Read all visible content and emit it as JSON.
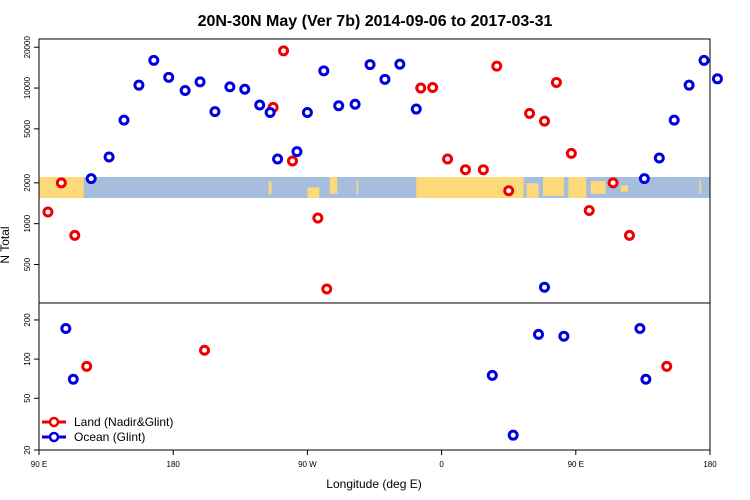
{
  "chart_data": {
    "type": "scatter",
    "title": "20N-30N May (Ver 7b)   2014-09-06 to 2017-03-31",
    "xlabel": "Longitude (deg E)",
    "ylabel": "N Total",
    "x_ticks": [
      {
        "lon": 90,
        "label": "90 E"
      },
      {
        "lon": 180,
        "label": "180"
      },
      {
        "lon": 270,
        "label": "90 W"
      },
      {
        "lon": 360,
        "label": "0"
      },
      {
        "lon": 450,
        "label": "90 E"
      },
      {
        "lon": 540,
        "label": "180"
      }
    ],
    "x_range": [
      90,
      540
    ],
    "top_panel": {
      "y_scale": "log",
      "ylim": [
        260,
        23000
      ],
      "y_ticks": [
        {
          "value": 500,
          "label": "500"
        },
        {
          "value": 1000,
          "label": "1000"
        },
        {
          "value": 2000,
          "label": "2000"
        },
        {
          "value": 5000,
          "label": "5000"
        },
        {
          "value": 10000,
          "label": "10000"
        },
        {
          "value": 20000,
          "label": "20000"
        }
      ],
      "map_band": {
        "ocean_color": "#a5bede",
        "land_color": "#fcd97a"
      },
      "series": [
        {
          "name": "Land (Nadir&Glint)",
          "color": "#ee0000",
          "points": [
            [
              96,
              1220
            ],
            [
              105,
              2000
            ],
            [
              114,
              820
            ],
            [
              247,
              7200
            ],
            [
              254,
              18800
            ],
            [
              260,
              2900
            ],
            [
              277,
              1100
            ],
            [
              283,
              330
            ],
            [
              346,
              10000
            ],
            [
              354,
              10100
            ],
            [
              364,
              3000
            ],
            [
              376,
              2500
            ],
            [
              388,
              2500
            ],
            [
              397,
              14500
            ],
            [
              405,
              1750
            ],
            [
              419,
              6500
            ],
            [
              429,
              5700
            ],
            [
              437,
              11000
            ],
            [
              447,
              3300
            ],
            [
              459,
              1250
            ],
            [
              475,
              2000
            ],
            [
              486,
              820
            ]
          ]
        },
        {
          "name": "Ocean (Glint)",
          "color": "#0000dd",
          "points": [
            [
              125,
              2150
            ],
            [
              137,
              3100
            ],
            [
              147,
              5800
            ],
            [
              157,
              10500
            ],
            [
              167,
              16000
            ],
            [
              177,
              12000
            ],
            [
              188,
              9600
            ],
            [
              198,
              11100
            ],
            [
              208,
              6700
            ],
            [
              218,
              10200
            ],
            [
              228,
              9800
            ],
            [
              238,
              7500
            ],
            [
              245,
              6600
            ],
            [
              250,
              3000
            ],
            [
              263,
              3400
            ],
            [
              270,
              6600
            ],
            [
              281,
              13400
            ],
            [
              291,
              7400
            ],
            [
              302,
              7600
            ],
            [
              312,
              14900
            ],
            [
              322,
              11600
            ],
            [
              332,
              15000
            ],
            [
              343,
              7000
            ],
            [
              429,
              340
            ],
            [
              496,
              2150
            ],
            [
              506,
              3050
            ],
            [
              516,
              5800
            ],
            [
              526,
              10500
            ],
            [
              536,
              16000
            ],
            [
              545,
              11700
            ]
          ]
        }
      ]
    },
    "bottom_panel": {
      "y_scale": "log",
      "ylim": [
        20,
        270
      ],
      "y_ticks": [
        {
          "value": 20,
          "label": "20"
        },
        {
          "value": 50,
          "label": "50"
        },
        {
          "value": 100,
          "label": "100"
        },
        {
          "value": 200,
          "label": "200"
        }
      ],
      "series": [
        {
          "name": "Land (Nadir&Glint)",
          "color": "#ee0000",
          "points": [
            [
              122,
              88
            ],
            [
              201,
              117
            ],
            [
              511,
              88
            ]
          ]
        },
        {
          "name": "Ocean (Glint)",
          "color": "#0000dd",
          "points": [
            [
              108,
              172
            ],
            [
              113,
              70
            ],
            [
              394,
              75
            ],
            [
              408,
              26
            ],
            [
              425,
              155
            ],
            [
              442,
              150
            ],
            [
              493,
              172
            ],
            [
              497,
              70
            ]
          ]
        }
      ]
    },
    "legend": {
      "position": "bottom-left",
      "entries": [
        {
          "label": "Land (Nadir&Glint)",
          "color": "#ee0000"
        },
        {
          "label": "Ocean (Glint)",
          "color": "#0000dd"
        }
      ]
    }
  }
}
